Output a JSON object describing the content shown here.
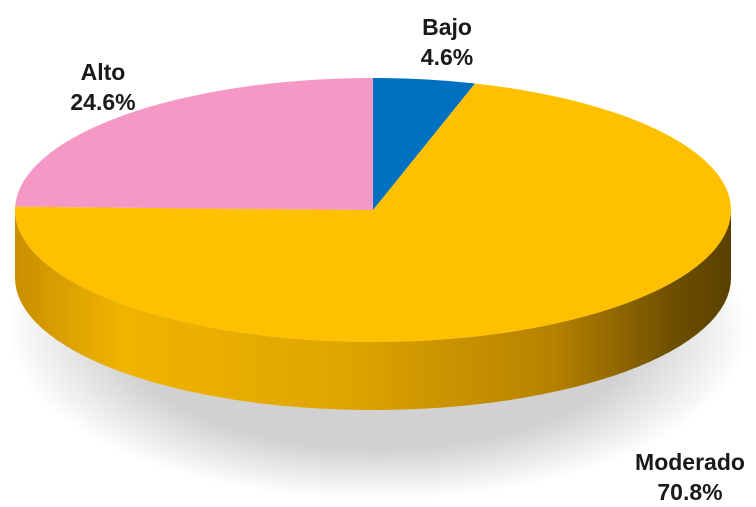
{
  "chart_data": {
    "type": "pie",
    "style": "3d",
    "categories": [
      "Bajo",
      "Moderado",
      "Alto"
    ],
    "values": [
      4.6,
      70.8,
      24.6
    ],
    "value_labels": [
      "4.6%",
      "70.8%",
      "24.6%"
    ],
    "colors": [
      "#0070C0",
      "#FFC000",
      "#F598C6"
    ],
    "start_angle_deg": 0,
    "direction": "clockwise",
    "legend": "none",
    "title": ""
  }
}
